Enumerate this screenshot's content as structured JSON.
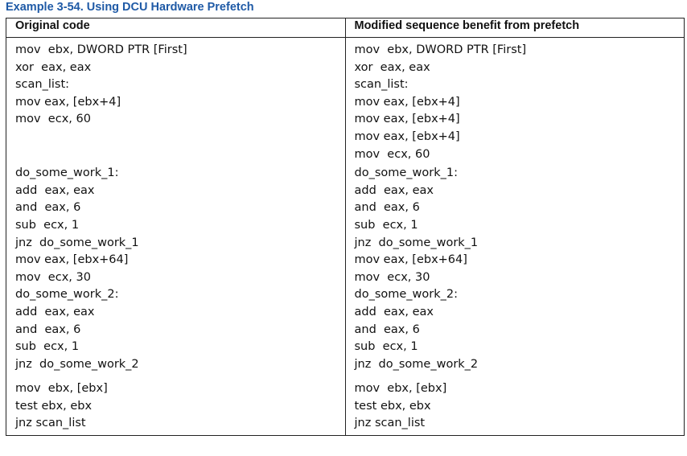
{
  "title": "Example 3-54.  Using DCU Hardware Prefetch",
  "table": {
    "header": [
      "Original code",
      "Modified sequence benefit from prefetch"
    ],
    "rows": [
      [
        [
          "mov  ebx, DWORD PTR [First]",
          "xor  eax, eax",
          "scan_list:",
          "mov eax, [ebx+4]",
          "mov  ecx, 60"
        ],
        [
          "mov  ebx, DWORD PTR [First]",
          "xor  eax, eax",
          "scan_list:",
          "mov eax, [ebx+4]",
          "mov eax, [ebx+4]",
          "mov eax, [ebx+4]",
          "mov  ecx, 60"
        ]
      ],
      [
        [
          "do_some_work_1:",
          "add  eax, eax",
          "and  eax, 6",
          "sub  ecx, 1",
          "jnz  do_some_work_1",
          "mov eax, [ebx+64]",
          "mov  ecx, 30",
          "do_some_work_2:",
          "add  eax, eax",
          "and  eax, 6",
          "sub  ecx, 1",
          "jnz  do_some_work_2"
        ],
        [
          "do_some_work_1:",
          "add  eax, eax",
          "and  eax, 6",
          "sub  ecx, 1",
          "jnz  do_some_work_1",
          "mov eax, [ebx+64]",
          "mov  ecx, 30",
          "do_some_work_2:",
          "add  eax, eax",
          "and  eax, 6",
          "sub  ecx, 1",
          "jnz  do_some_work_2"
        ]
      ],
      [
        [
          "mov  ebx, [ebx]",
          "test ebx, ebx",
          "jnz scan_list"
        ],
        [
          "mov  ebx, [ebx]",
          "test ebx, ebx",
          "jnz scan_list"
        ]
      ]
    ]
  }
}
